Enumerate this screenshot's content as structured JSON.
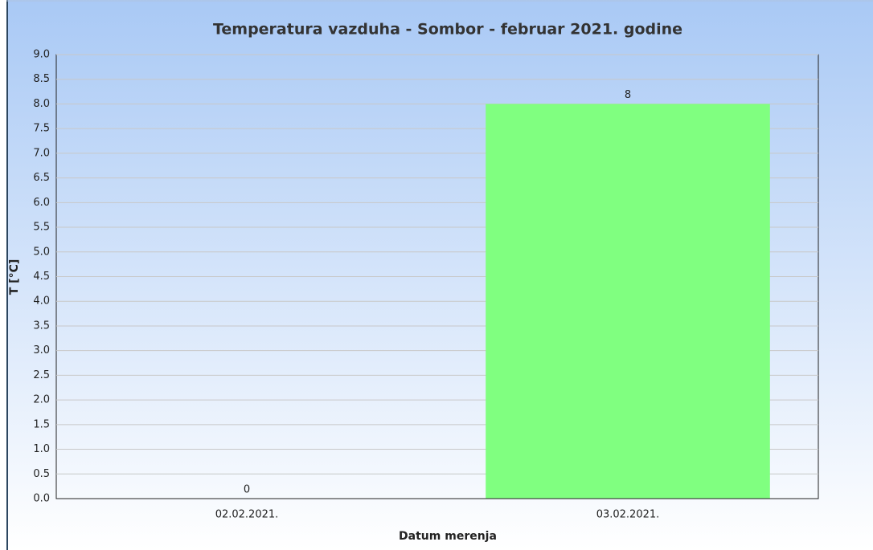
{
  "chart_data": {
    "type": "bar",
    "title": "Temperatura vazduha - Sombor - februar 2021. godine",
    "x_label": "Datum merenja",
    "y_label": "T [°C]",
    "categories": [
      "02.02.2021.",
      "03.02.2021."
    ],
    "values": [
      0,
      8
    ],
    "color": "#80ff80",
    "ylim": [
      0,
      9
    ],
    "yticks": [
      {
        "value": 0,
        "label": "0.0"
      },
      0.5,
      {
        "value": 1,
        "label": "1.0"
      },
      1.5,
      {
        "value": 2,
        "label": "2.0"
      },
      2.5,
      {
        "value": 3,
        "label": "3.0"
      },
      3.5,
      {
        "value": 4,
        "label": "4.0"
      },
      4.5,
      {
        "value": 5,
        "label": "5.0"
      },
      5.5,
      {
        "value": 6,
        "label": "6.0"
      },
      6.5,
      {
        "value": 7,
        "label": "7.0"
      },
      7.5,
      {
        "value": 8,
        "label": "8.0"
      },
      8.5,
      {
        "value": 9,
        "label": "9.0"
      }
    ],
    "grid": true
  }
}
